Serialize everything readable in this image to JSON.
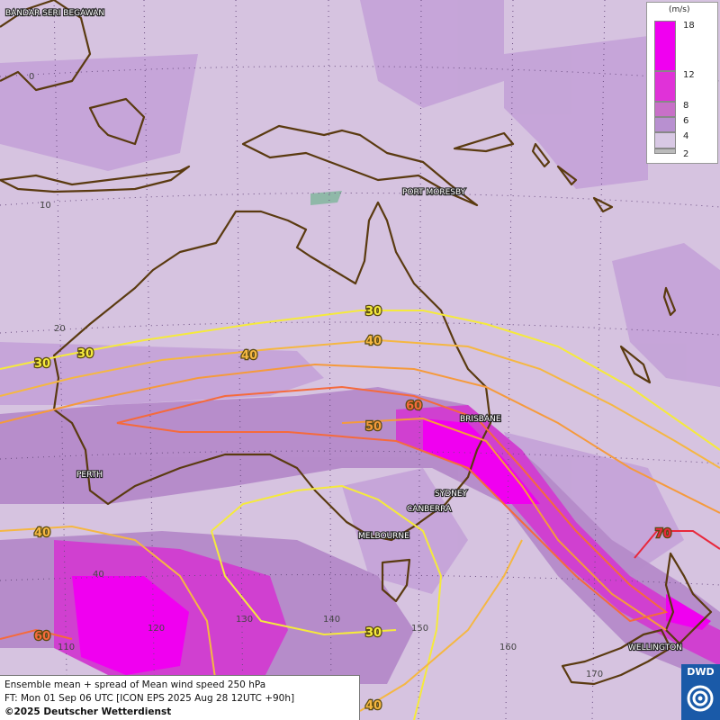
{
  "places": {
    "bandar": "BANDAR SERI BEGAWAN",
    "port_moresby": "PORT MORESBY",
    "brisbane": "BRISBANE",
    "perth": "PERTH",
    "sydney": "SYDNEY",
    "canberra": "CANBERRA",
    "melbourne": "MELBOURNE",
    "wellington": "WELLINGTON"
  },
  "grid_labels": {
    "lat_0": "0",
    "lat_10": "10",
    "lat_20": "20",
    "lat_40": "40",
    "lon_110": "110",
    "lon_120": "120",
    "lon_130": "130",
    "lon_140": "140",
    "lon_150": "150",
    "lon_160": "160",
    "lon_170": "170"
  },
  "contour_labels": {
    "c30a": "30",
    "c30b": "30",
    "c30c": "30",
    "c30d": "30",
    "c40a": "40",
    "c40b": "40",
    "c40c": "40",
    "c40d": "40",
    "c50": "50",
    "c60a": "60",
    "c60b": "60",
    "c70": "70"
  },
  "legend": {
    "unit": "(m/s)",
    "ticks": [
      "18",
      "12",
      "8",
      "6",
      "4",
      "2"
    ],
    "colors": [
      "#f000f0",
      "#e032d8",
      "#c870c8",
      "#b890d0",
      "#c8a8dc",
      "#d8c8e4",
      "#bbbbbb"
    ]
  },
  "info": {
    "line1": "Ensemble mean + spread of Mean wind speed 250 hPa",
    "line2": "FT: Mon 01 Sep 06 UTC [ICON EPS 2025 Aug 28 12UTC +90h]",
    "line3": "©2025 Deutscher Wetterdienst"
  },
  "logo": {
    "text": "DWD"
  },
  "colors": {
    "background": "#d6c3e0",
    "contour_30": "#f5ea3c",
    "contour_40": "#f5b742",
    "contour_50": "#f59a3c",
    "contour_60": "#f56a3c",
    "contour_70": "#e8283c",
    "coast": "#5a3a10"
  }
}
